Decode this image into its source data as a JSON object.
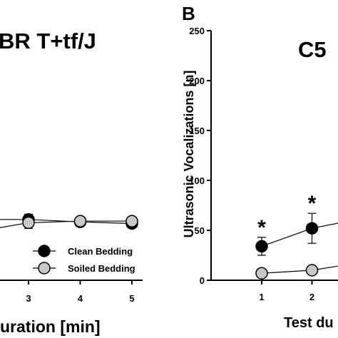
{
  "colors": {
    "clean": "#000000",
    "soiled": "#c8c8c8",
    "axis": "#000000"
  },
  "chart_data": [
    {
      "type": "line",
      "panel_label": "",
      "title": "BR T+tf/J",
      "xlabel": "uration [min]",
      "ylabel": "",
      "x": [
        1,
        2,
        3,
        4,
        5
      ],
      "xticks": [
        "3",
        "4",
        "5"
      ],
      "xlim": [
        0,
        5.5
      ],
      "ylim": [
        0,
        250
      ],
      "grid": false,
      "legend_placement": "bottom-right",
      "legend": [
        "Clean Bedding",
        "Soiled Bedding"
      ],
      "series": [
        {
          "name": "Clean Bedding",
          "x": [
            2,
            3,
            4,
            5
          ],
          "values": [
            150,
            150,
            144,
            140
          ],
          "err": [
            0,
            13,
            8,
            8
          ]
        },
        {
          "name": "Soiled Bedding",
          "x": [
            2,
            3,
            4,
            5
          ],
          "values": [
            120,
            142,
            146,
            146
          ],
          "err": [
            0,
            14,
            9,
            7
          ]
        }
      ]
    },
    {
      "type": "line",
      "panel_label": "B",
      "title": "C5",
      "xlabel": "Test du",
      "ylabel": "Ultrasonic Vocalizations [n]",
      "x": [
        1,
        2,
        3
      ],
      "xticks": [
        "1",
        "2"
      ],
      "yticks": [
        "0",
        "50",
        "100",
        "150",
        "200",
        "250"
      ],
      "xlim": [
        0.5,
        2.9
      ],
      "ylim": [
        0,
        250
      ],
      "grid": false,
      "annotations": [
        "*",
        "*"
      ],
      "series": [
        {
          "name": "Clean Bedding",
          "values": [
            34,
            52,
            62
          ],
          "err": [
            9,
            15,
            0
          ]
        },
        {
          "name": "Soiled Bedding",
          "values": [
            7,
            10,
            18
          ],
          "err": [
            0,
            0,
            0
          ]
        }
      ]
    }
  ]
}
